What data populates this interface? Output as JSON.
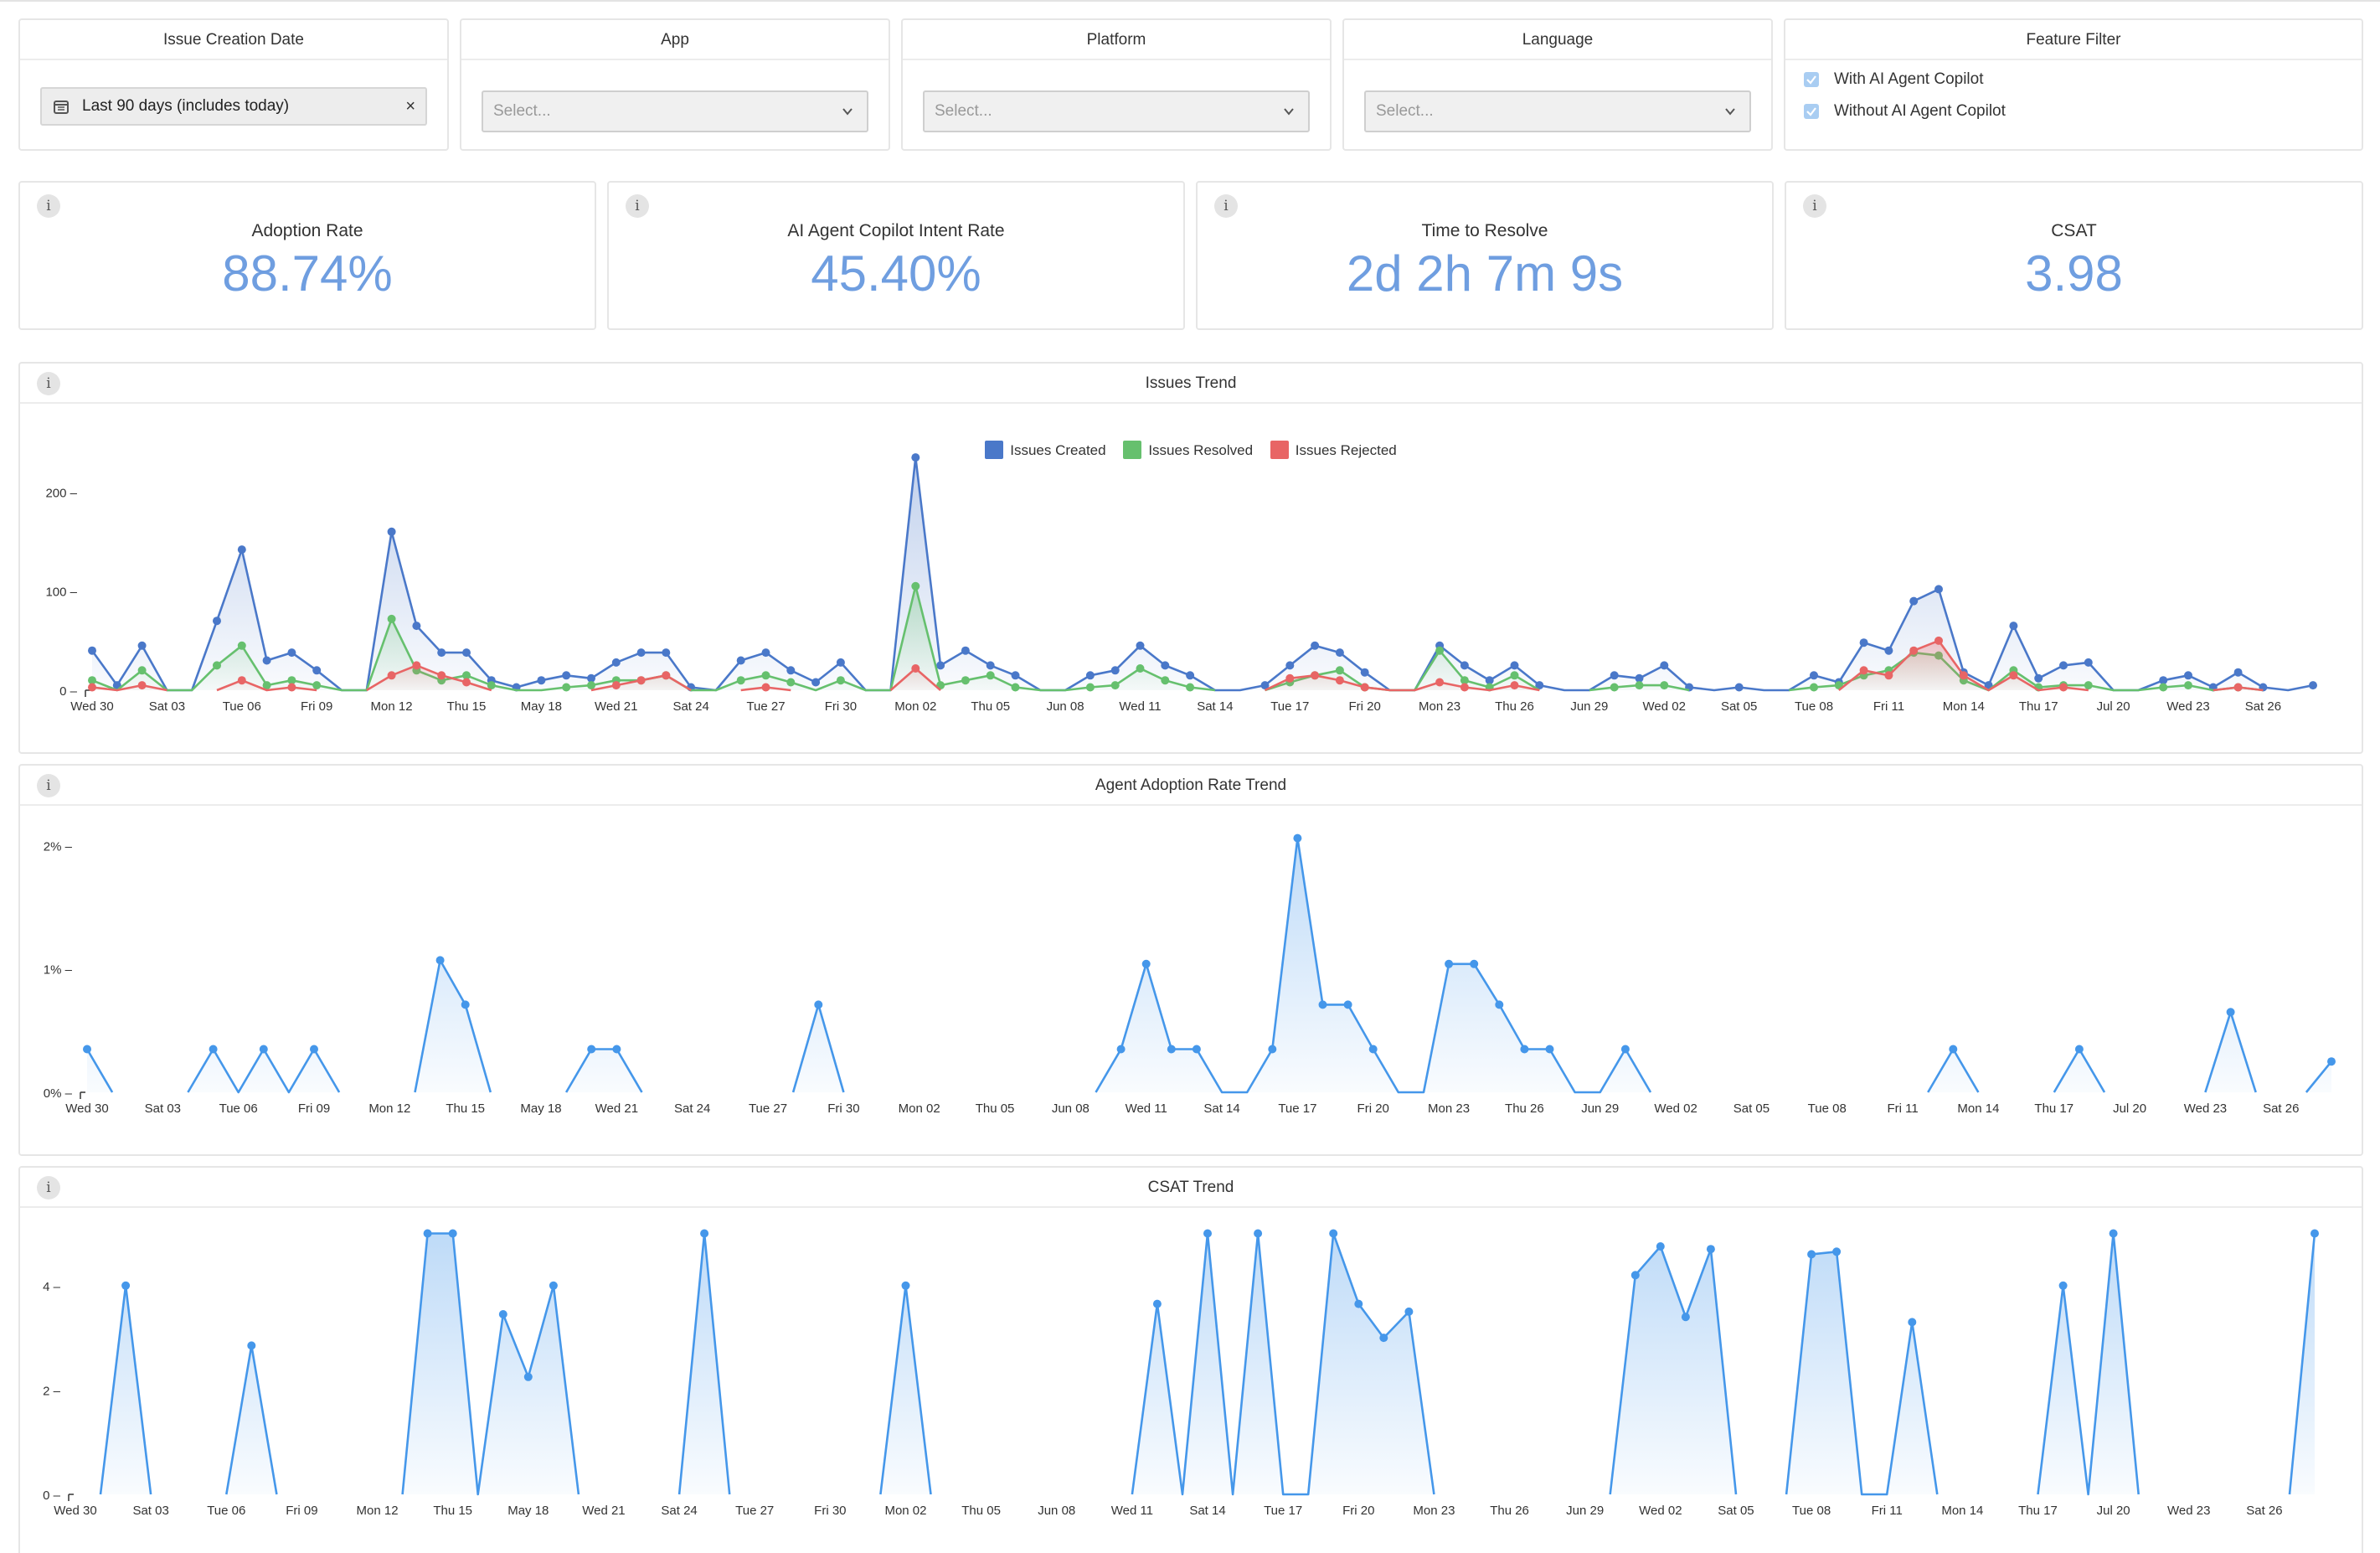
{
  "filters": {
    "date": {
      "title": "Issue Creation Date",
      "value": "Last 90 days (includes today)"
    },
    "app": {
      "title": "App",
      "placeholder": "Select..."
    },
    "platform": {
      "title": "Platform",
      "placeholder": "Select..."
    },
    "language": {
      "title": "Language",
      "placeholder": "Select..."
    },
    "feature": {
      "title": "Feature Filter",
      "options": [
        "With AI Agent Copilot",
        "Without AI Agent Copilot"
      ]
    }
  },
  "kpis": [
    {
      "label": "Adoption Rate",
      "value": "88.74%"
    },
    {
      "label": "AI Agent Copilot Intent Rate",
      "value": "45.40%"
    },
    {
      "label": "Time to Resolve",
      "value": "2d 2h 7m 9s"
    },
    {
      "label": "CSAT",
      "value": "3.98"
    }
  ],
  "info_glyph": "i",
  "colors": {
    "accent": "#6f9ee0",
    "created": "#4a78c9",
    "resolved": "#66c06e",
    "rejected": "#e86565",
    "trend": "#4597ea"
  },
  "chart_data": [
    {
      "type": "area",
      "title": "Issues Trend",
      "legend_position": "top",
      "tick_labels": [
        "Wed 30",
        "Sat 03",
        "Tue 06",
        "Fri 09",
        "Mon 12",
        "Thu 15",
        "May 18",
        "Wed 21",
        "Sat 24",
        "Tue 27",
        "Fri 30",
        "Mon 02",
        "Thu 05",
        "Jun 08",
        "Wed 11",
        "Sat 14",
        "Tue 17",
        "Fri 20",
        "Mon 23",
        "Thu 26",
        "Jun 29",
        "Wed 02",
        "Sat 05",
        "Tue 08",
        "Fri 11",
        "Mon 14",
        "Thu 17",
        "Jul 20",
        "Wed 23",
        "Sat 26"
      ],
      "y_ticks": [
        {
          "v": 0,
          "label": "0"
        },
        {
          "v": 100,
          "label": "100"
        },
        {
          "v": 200,
          "label": "200"
        }
      ],
      "ylim": [
        0,
        230
      ],
      "series": [
        {
          "name": "Issues Created",
          "color": "#4a78c9",
          "values": [
            40,
            5,
            45,
            0,
            0,
            70,
            142,
            30,
            38,
            20,
            0,
            0,
            160,
            65,
            38,
            38,
            10,
            3,
            10,
            15,
            12,
            28,
            38,
            38,
            3,
            0,
            30,
            38,
            20,
            8,
            28,
            0,
            0,
            235,
            25,
            40,
            25,
            15,
            0,
            0,
            15,
            20,
            45,
            25,
            15,
            0,
            0,
            5,
            25,
            45,
            38,
            18,
            0,
            0,
            45,
            25,
            10,
            25,
            5,
            0,
            0,
            15,
            12,
            25,
            3,
            0,
            3,
            0,
            0,
            15,
            8,
            48,
            40,
            90,
            102,
            18,
            5,
            65,
            12,
            25,
            28,
            0,
            0,
            10,
            15,
            3,
            18,
            3,
            0,
            5
          ]
        },
        {
          "name": "Issues Resolved",
          "color": "#66c06e",
          "values": [
            10,
            0,
            20,
            0,
            0,
            25,
            45,
            5,
            10,
            5,
            0,
            0,
            72,
            20,
            10,
            15,
            5,
            0,
            0,
            3,
            5,
            10,
            10,
            15,
            0,
            0,
            10,
            15,
            8,
            0,
            10,
            0,
            0,
            105,
            5,
            10,
            15,
            3,
            0,
            0,
            3,
            5,
            22,
            10,
            3,
            0,
            0,
            0,
            8,
            15,
            20,
            3,
            0,
            0,
            40,
            10,
            3,
            15,
            0,
            0,
            0,
            3,
            5,
            5,
            0,
            0,
            0,
            0,
            0,
            3,
            5,
            15,
            20,
            38,
            35,
            10,
            0,
            20,
            3,
            5,
            5,
            0,
            0,
            3,
            5,
            0,
            3,
            0,
            0,
            0
          ]
        },
        {
          "name": "Issues Rejected",
          "color": "#e86565",
          "values": [
            3,
            0,
            5,
            0,
            0,
            0,
            10,
            0,
            3,
            0,
            0,
            0,
            15,
            25,
            15,
            8,
            0,
            0,
            0,
            0,
            0,
            5,
            10,
            15,
            0,
            0,
            0,
            3,
            0,
            0,
            0,
            0,
            0,
            22,
            0,
            0,
            0,
            0,
            0,
            0,
            0,
            0,
            0,
            0,
            0,
            0,
            0,
            0,
            12,
            15,
            10,
            3,
            0,
            0,
            8,
            3,
            0,
            5,
            0,
            0,
            0,
            0,
            0,
            0,
            0,
            0,
            0,
            0,
            0,
            0,
            0,
            20,
            15,
            40,
            50,
            15,
            0,
            15,
            0,
            3,
            0,
            0,
            0,
            0,
            0,
            0,
            3,
            0,
            0,
            0
          ]
        }
      ]
    },
    {
      "type": "area",
      "title": "Agent Adoption Rate Trend",
      "tick_labels": [
        "Wed 30",
        "Sat 03",
        "Tue 06",
        "Fri 09",
        "Mon 12",
        "Thu 15",
        "May 18",
        "Wed 21",
        "Sat 24",
        "Tue 27",
        "Fri 30",
        "Mon 02",
        "Thu 05",
        "Jun 08",
        "Wed 11",
        "Sat 14",
        "Tue 17",
        "Fri 20",
        "Mon 23",
        "Thu 26",
        "Jun 29",
        "Wed 02",
        "Sat 05",
        "Tue 08",
        "Fri 11",
        "Mon 14",
        "Thu 17",
        "Jul 20",
        "Wed 23",
        "Sat 26"
      ],
      "y_ticks": [
        {
          "v": 0,
          "label": "0%"
        },
        {
          "v": 1,
          "label": "1%"
        },
        {
          "v": 2,
          "label": "2%"
        }
      ],
      "ylim": [
        0,
        2.2
      ],
      "series": [
        {
          "name": "",
          "color": "#4597ea",
          "values": [
            0.35,
            0,
            0,
            0,
            0,
            0.35,
            0,
            0.35,
            0,
            0.35,
            0,
            0,
            0,
            0,
            1.07,
            0.71,
            0,
            0,
            0,
            0,
            0.35,
            0.35,
            0,
            0,
            0,
            0,
            0,
            0,
            0,
            0.71,
            0,
            0,
            0,
            0,
            0,
            0,
            0,
            0,
            0,
            0,
            0,
            0.35,
            1.04,
            0.35,
            0.35,
            0,
            0,
            0.35,
            2.06,
            0.71,
            0.71,
            0.35,
            0,
            0,
            1.04,
            1.04,
            0.71,
            0.35,
            0.35,
            0,
            0,
            0.35,
            0,
            0,
            0,
            0,
            0,
            0,
            0,
            0,
            0,
            0,
            0,
            0,
            0.35,
            0,
            0,
            0,
            0,
            0.35,
            0,
            0,
            0,
            0,
            0,
            0.65,
            0,
            0,
            0,
            0.25
          ]
        }
      ]
    },
    {
      "type": "area",
      "title": "CSAT Trend",
      "tick_labels": [
        "Wed 30",
        "Sat 03",
        "Tue 06",
        "Fri 09",
        "Mon 12",
        "Thu 15",
        "May 18",
        "Wed 21",
        "Sat 24",
        "Tue 27",
        "Fri 30",
        "Mon 02",
        "Thu 05",
        "Jun 08",
        "Wed 11",
        "Sat 14",
        "Tue 17",
        "Fri 20",
        "Mon 23",
        "Thu 26",
        "Jun 29",
        "Wed 02",
        "Sat 05",
        "Tue 08",
        "Fri 11",
        "Mon 14",
        "Thu 17",
        "Jul 20",
        "Wed 23",
        "Sat 26"
      ],
      "y_ticks": [
        {
          "v": 0,
          "label": "0"
        },
        {
          "v": 2,
          "label": "2"
        },
        {
          "v": 4,
          "label": "4"
        }
      ],
      "ylim": [
        0,
        5.2
      ],
      "series": [
        {
          "name": "",
          "color": "#4597ea",
          "values": [
            0,
            0,
            4,
            0,
            0,
            0,
            0,
            2.85,
            0,
            0,
            0,
            0,
            0,
            0,
            5,
            5,
            0,
            3.45,
            2.25,
            4,
            0,
            0,
            0,
            0,
            0,
            5,
            0,
            0,
            0,
            0,
            0,
            0,
            0,
            4,
            0,
            0,
            0,
            0,
            0,
            0,
            0,
            0,
            0,
            3.65,
            0,
            5,
            0,
            5,
            0,
            0,
            5,
            3.65,
            3,
            3.5,
            0,
            0,
            0,
            0,
            0,
            0,
            0,
            0,
            4.2,
            4.75,
            3.4,
            4.7,
            0,
            0,
            0,
            4.6,
            4.65,
            0,
            0,
            3.3,
            0,
            0,
            0,
            0,
            0,
            4,
            0,
            5,
            0,
            0,
            0,
            0,
            0,
            0,
            0,
            5
          ]
        }
      ]
    }
  ]
}
